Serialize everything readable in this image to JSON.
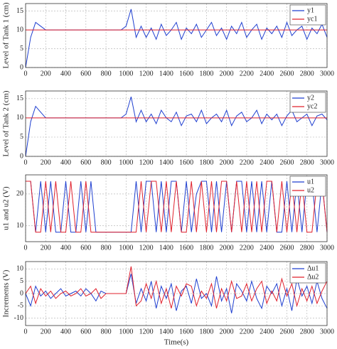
{
  "chart_data": [
    {
      "type": "line",
      "ylabel": "Level of Tank 1 (cm)",
      "x": [
        0,
        50,
        100,
        150,
        200,
        250,
        300,
        350,
        400,
        450,
        500,
        550,
        600,
        650,
        700,
        750,
        800,
        850,
        900,
        950,
        1000,
        1050,
        1100,
        1150,
        1200,
        1250,
        1300,
        1350,
        1400,
        1450,
        1500,
        1550,
        1600,
        1650,
        1700,
        1750,
        1800,
        1850,
        1900,
        1950,
        2000,
        2050,
        2100,
        2150,
        2200,
        2250,
        2300,
        2350,
        2400,
        2450,
        2500,
        2550,
        2600,
        2650,
        2700,
        2750,
        2800,
        2850,
        2900,
        2950,
        3000
      ],
      "series": [
        {
          "name": "y1",
          "color": "#1f3fd0",
          "values": [
            0,
            8,
            12,
            11,
            10,
            10,
            10,
            10,
            10,
            10,
            10,
            10,
            10,
            10,
            10,
            10,
            10,
            10,
            10,
            10,
            11,
            15.5,
            8,
            11,
            8,
            10.5,
            7.5,
            11.5,
            8.5,
            10,
            12,
            7.5,
            10.5,
            9,
            11.5,
            8,
            10,
            12,
            8.5,
            10.5,
            7.5,
            11,
            9,
            12,
            8,
            10,
            11.5,
            7.5,
            10.5,
            9,
            11,
            8,
            12,
            8.5,
            10,
            11,
            7.5,
            10.5,
            9,
            11.5,
            8
          ]
        },
        {
          "name": "yc1",
          "color": "#e0202c",
          "values": [
            10,
            10,
            10,
            10,
            10,
            10,
            10,
            10,
            10,
            10,
            10,
            10,
            10,
            10,
            10,
            10,
            10,
            10,
            10,
            10,
            10,
            10,
            10,
            10,
            10,
            10,
            10,
            10,
            10,
            10,
            10,
            10,
            10,
            10,
            10,
            10,
            10,
            10,
            10,
            10,
            10,
            10,
            10,
            10,
            10,
            10,
            10,
            10,
            10,
            10,
            10,
            10,
            10,
            10,
            10,
            10,
            10,
            10,
            10,
            10,
            10
          ]
        }
      ],
      "xlim": [
        0,
        3000
      ],
      "xticks": [
        0,
        200,
        400,
        600,
        800,
        1000,
        1200,
        1400,
        1600,
        1800,
        2000,
        2200,
        2400,
        2600,
        2800,
        3000
      ],
      "ylim": [
        0,
        17
      ],
      "yticks": [
        0,
        5,
        10,
        15
      ],
      "grid": true
    },
    {
      "type": "line",
      "ylabel": "Level of Tank 2 (cm)",
      "x": [
        0,
        50,
        100,
        150,
        200,
        250,
        300,
        350,
        400,
        450,
        500,
        550,
        600,
        650,
        700,
        750,
        800,
        850,
        900,
        950,
        1000,
        1050,
        1100,
        1150,
        1200,
        1250,
        1300,
        1350,
        1400,
        1450,
        1500,
        1550,
        1600,
        1650,
        1700,
        1750,
        1800,
        1850,
        1900,
        1950,
        2000,
        2050,
        2100,
        2150,
        2200,
        2250,
        2300,
        2350,
        2400,
        2450,
        2500,
        2550,
        2600,
        2650,
        2700,
        2750,
        2800,
        2850,
        2900,
        2950,
        3000
      ],
      "series": [
        {
          "name": "y2",
          "color": "#1f3fd0",
          "values": [
            0,
            9,
            13,
            11.5,
            10,
            10,
            10,
            10,
            10,
            10,
            10,
            10,
            10,
            10,
            10,
            10,
            10,
            10,
            10,
            10,
            11,
            15.5,
            9,
            12,
            9,
            11,
            8.5,
            12,
            10,
            9,
            11.5,
            8,
            10.5,
            11,
            9,
            12,
            8.5,
            10,
            11,
            9,
            12,
            8,
            10.5,
            11.5,
            9,
            10,
            12,
            8.5,
            11,
            9.5,
            11,
            8,
            10.5,
            12,
            9,
            10,
            11,
            8,
            10.5,
            11,
            9.5
          ]
        },
        {
          "name": "yc2",
          "color": "#e0202c",
          "values": [
            10,
            10,
            10,
            10,
            10,
            10,
            10,
            10,
            10,
            10,
            10,
            10,
            10,
            10,
            10,
            10,
            10,
            10,
            10,
            10,
            10,
            10,
            10,
            10,
            10,
            10,
            10,
            10,
            10,
            10,
            10,
            10,
            10,
            10,
            10,
            10,
            10,
            10,
            10,
            10,
            10,
            10,
            10,
            10,
            10,
            10,
            10,
            10,
            10,
            10,
            10,
            10,
            10,
            10,
            10,
            10,
            10,
            10,
            10,
            10,
            10
          ]
        }
      ],
      "xlim": [
        0,
        3000
      ],
      "xticks": [
        0,
        200,
        400,
        600,
        800,
        1000,
        1200,
        1400,
        1600,
        1800,
        2000,
        2200,
        2400,
        2600,
        2800,
        3000
      ],
      "ylim": [
        0,
        17
      ],
      "yticks": [
        0,
        5,
        10,
        15
      ],
      "grid": true
    },
    {
      "type": "line",
      "ylabel": "u1 and u2 (V)",
      "x": [
        0,
        50,
        100,
        150,
        200,
        250,
        300,
        350,
        400,
        450,
        500,
        550,
        600,
        650,
        700,
        750,
        800,
        850,
        900,
        950,
        1000,
        1050,
        1100,
        1150,
        1200,
        1250,
        1300,
        1350,
        1400,
        1450,
        1500,
        1550,
        1600,
        1650,
        1700,
        1750,
        1800,
        1850,
        1900,
        1950,
        2000,
        2050,
        2100,
        2150,
        2200,
        2250,
        2300,
        2350,
        2400,
        2450,
        2500,
        2550,
        2600,
        2650,
        2700,
        2750,
        2800,
        2850,
        2900,
        2950,
        3000
      ],
      "series": [
        {
          "name": "u1",
          "color": "#1f3fd0",
          "values": [
            24,
            24,
            8,
            24,
            8,
            24,
            8,
            8,
            24,
            8,
            8,
            24,
            8,
            24,
            8,
            8,
            8,
            8,
            8,
            8,
            8,
            8,
            24,
            8,
            24,
            24,
            8,
            24,
            8,
            24,
            24,
            8,
            24,
            8,
            20,
            24,
            24,
            8,
            24,
            8,
            24,
            8,
            24,
            24,
            8,
            24,
            8,
            24,
            8,
            24,
            8,
            8,
            24,
            8,
            24,
            8,
            24,
            24,
            8,
            24,
            8
          ]
        },
        {
          "name": "u2",
          "color": "#e0202c",
          "values": [
            24,
            24,
            8,
            8,
            24,
            8,
            24,
            8,
            8,
            24,
            8,
            8,
            24,
            8,
            8,
            8,
            8,
            8,
            8,
            8,
            8,
            8,
            8,
            24,
            8,
            24,
            24,
            8,
            24,
            8,
            24,
            8,
            8,
            24,
            8,
            24,
            8,
            24,
            8,
            24,
            24,
            8,
            24,
            8,
            24,
            8,
            24,
            8,
            24,
            24,
            8,
            24,
            8,
            24,
            8,
            24,
            8,
            8,
            24,
            24,
            8
          ]
        }
      ],
      "xlim": [
        0,
        3000
      ],
      "xticks": [
        0,
        200,
        400,
        600,
        800,
        1000,
        1200,
        1400,
        1600,
        1800,
        2000,
        2200,
        2400,
        2600,
        2800,
        3000
      ],
      "ylim": [
        5,
        26
      ],
      "yticks": [
        10,
        20
      ],
      "grid": true
    },
    {
      "type": "line",
      "ylabel": "Increments (V)",
      "xlabel": "Time(s)",
      "x": [
        0,
        50,
        100,
        150,
        200,
        250,
        300,
        350,
        400,
        450,
        500,
        550,
        600,
        650,
        700,
        750,
        800,
        850,
        900,
        950,
        1000,
        1050,
        1100,
        1150,
        1200,
        1250,
        1300,
        1350,
        1400,
        1450,
        1500,
        1550,
        1600,
        1650,
        1700,
        1750,
        1800,
        1850,
        1900,
        1950,
        2000,
        2050,
        2100,
        2150,
        2200,
        2250,
        2300,
        2350,
        2400,
        2450,
        2500,
        2550,
        2600,
        2650,
        2700,
        2750,
        2800,
        2850,
        2900,
        2950,
        3000
      ],
      "series": [
        {
          "name": "Δu1",
          "color": "#1f3fd0",
          "values": [
            0,
            -5,
            3,
            -1,
            1,
            -2,
            0,
            2,
            -1,
            0,
            1,
            -1,
            2,
            0,
            -3,
            1,
            0,
            0,
            0,
            0,
            0,
            8,
            -4,
            2,
            -3,
            5,
            -6,
            3,
            -2,
            4,
            -7,
            1,
            3,
            -4,
            6,
            -2,
            0,
            -5,
            7,
            -3,
            2,
            -8,
            4,
            1,
            -3,
            5,
            -2,
            -6,
            3,
            0,
            4,
            -5,
            2,
            -7,
            6,
            -1,
            3,
            -4,
            5,
            -2,
            -6
          ]
        },
        {
          "name": "Δu2",
          "color": "#e0202c",
          "values": [
            0,
            3,
            -4,
            2,
            -1,
            1,
            -2,
            0,
            1,
            -1,
            0,
            2,
            -1,
            0,
            2,
            -2,
            0,
            0,
            0,
            0,
            0,
            11,
            -5,
            -3,
            4,
            -2,
            5,
            -4,
            2,
            -6,
            3,
            -1,
            4,
            3,
            -5,
            1,
            -2,
            4,
            -6,
            2,
            -3,
            5,
            -2,
            -1,
            4,
            -3,
            2,
            5,
            -4,
            1,
            -3,
            6,
            -1,
            4,
            -5,
            2,
            -3,
            3,
            -4,
            1,
            5
          ]
        }
      ],
      "xlim": [
        0,
        3000
      ],
      "xticks": [
        0,
        200,
        400,
        600,
        800,
        1000,
        1200,
        1400,
        1600,
        1800,
        2000,
        2200,
        2400,
        2600,
        2800,
        3000
      ],
      "ylim": [
        -13,
        13
      ],
      "yticks": [
        -10,
        -5,
        0,
        5,
        10
      ],
      "grid": true
    }
  ]
}
